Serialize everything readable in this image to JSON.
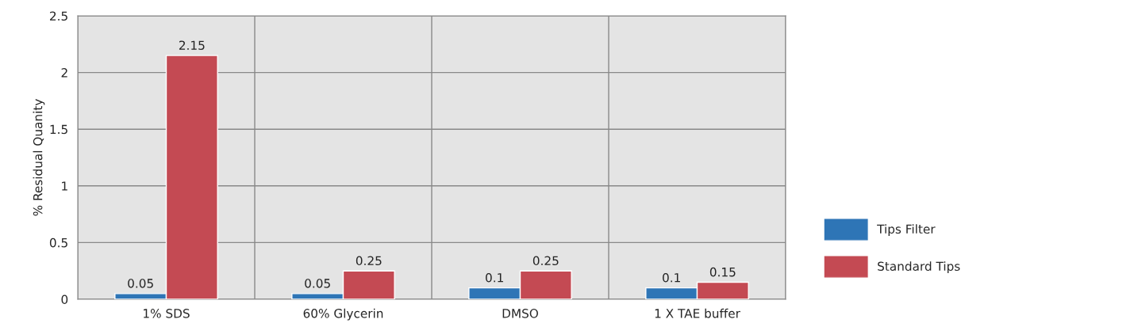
{
  "chart_data": {
    "type": "bar",
    "ylabel": "% Residual Quanity",
    "categories": [
      "1% SDS",
      "60% Glycerin",
      "DMSO",
      "1 X TAE buffer"
    ],
    "series": [
      {
        "name": "Tips Filter",
        "color": "#2e75b6",
        "values": [
          0.05,
          0.05,
          0.1,
          0.1
        ]
      },
      {
        "name": "Standard Tips",
        "color": "#c44a53",
        "values": [
          2.15,
          0.25,
          0.25,
          0.15
        ]
      }
    ],
    "ylim": [
      0,
      2.5
    ],
    "yticks": [
      0,
      0.5,
      1,
      1.5,
      2,
      2.5
    ],
    "grid": true,
    "legend": "right",
    "data_labels": true
  }
}
